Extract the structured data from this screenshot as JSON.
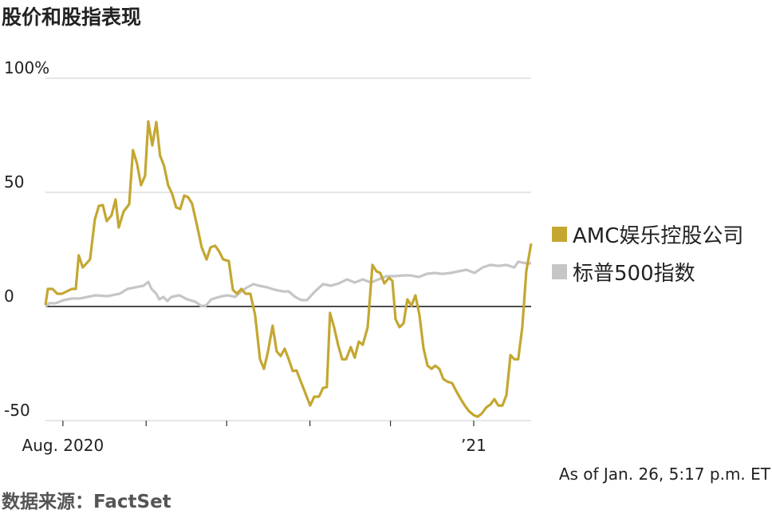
{
  "chart_data": {
    "type": "line",
    "title": "股价和股指表现",
    "note": "As of Jan. 26, 5:17 p.m. ET",
    "source": "数据来源：FactSet",
    "xlim": [
      -6.5,
      174.4
    ],
    "xticks": [
      {
        "value": 0,
        "label": "Aug. 2020"
      },
      {
        "value": 153,
        "label": "’21"
      }
    ],
    "xminor": [
      31,
      61,
      92,
      122
    ],
    "ylim": [
      -50,
      100
    ],
    "yticks": [
      {
        "value": 100,
        "label": "100%"
      },
      50,
      0,
      -50
    ],
    "grid": true,
    "series": [
      {
        "name": "AMC娱乐控股公司",
        "color": "#c4a731",
        "x": [
          -6.5,
          -5.6,
          -3.9,
          -2.1,
          -0.3,
          0.9,
          3.3,
          4.8,
          5.9,
          7.4,
          10.1,
          11.9,
          13.4,
          14.9,
          16.3,
          18.1,
          19.6,
          20.8,
          22.6,
          24.7,
          26.1,
          27.6,
          29.1,
          30.6,
          31.8,
          33.3,
          34.8,
          36.2,
          37.7,
          39.2,
          40.7,
          42.2,
          43.7,
          45.2,
          46.6,
          48.1,
          49.9,
          51.7,
          53.5,
          55.0,
          56.7,
          58.2,
          59.7,
          61.8,
          63.3,
          64.8,
          66.5,
          68.0,
          69.8,
          71.6,
          73.4,
          74.9,
          76.4,
          78.1,
          79.6,
          81.1,
          82.6,
          84.1,
          85.6,
          87.0,
          88.5,
          90.0,
          92.1,
          93.6,
          95.4,
          96.9,
          98.3,
          99.5,
          101.0,
          102.5,
          104.0,
          105.5,
          107.2,
          108.7,
          110.2,
          111.7,
          113.5,
          115.3,
          116.8,
          118.2,
          119.7,
          121.5,
          122.7,
          123.9,
          125.4,
          126.9,
          128.3,
          129.8,
          131.3,
          132.8,
          134.3,
          135.8,
          137.3,
          138.7,
          140.2,
          141.7,
          143.2,
          145.0,
          146.5,
          148.2,
          149.7,
          151.2,
          153.0,
          154.5,
          156.0,
          157.8,
          159.2,
          160.7,
          162.2,
          163.7,
          165.2,
          166.7,
          168.1,
          169.6,
          171.1,
          172.6,
          174.4
        ],
        "values": [
          0.7,
          7.7,
          7.7,
          5.6,
          5.6,
          6.3,
          7.7,
          7.7,
          22.4,
          17.1,
          20.6,
          38.1,
          44.1,
          44.4,
          37.4,
          39.9,
          46.9,
          34.6,
          41.6,
          44.8,
          68.5,
          62.6,
          53.1,
          57.3,
          81.1,
          70.6,
          80.8,
          66.1,
          61.5,
          53.1,
          49.3,
          43.4,
          42.7,
          48.6,
          47.9,
          45.1,
          35.7,
          25.9,
          20.6,
          25.9,
          26.6,
          24.1,
          20.6,
          19.9,
          7.3,
          5.6,
          7.7,
          5.6,
          5.6,
          -3.8,
          -23.1,
          -27.3,
          -19.6,
          -8.4,
          -19.6,
          -21.7,
          -18.5,
          -23.1,
          -28.3,
          -28.0,
          -32.5,
          -37.1,
          -43.4,
          -39.5,
          -39.5,
          -35.7,
          -35.3,
          -2.8,
          -9.1,
          -16.8,
          -23.1,
          -23.1,
          -17.8,
          -22.4,
          -15.4,
          -16.8,
          -9.1,
          18.2,
          15.4,
          14.7,
          10.1,
          12.6,
          11.2,
          -5.6,
          -9.1,
          -7.3,
          3.1,
          0.3,
          4.9,
          -3.8,
          -18.2,
          -25.9,
          -27.3,
          -25.9,
          -27.3,
          -31.8,
          -32.9,
          -33.6,
          -37.1,
          -40.6,
          -43.4,
          -45.8,
          -47.6,
          -48.3,
          -46.9,
          -44.1,
          -43.0,
          -40.6,
          -43.4,
          -43.4,
          -38.8,
          -21.3,
          -23.1,
          -23.1,
          -9.1,
          15.4,
          27.6
        ]
      },
      {
        "name": "标普500指数",
        "color": "#c6c6c6",
        "x": [
          -6.5,
          -5.1,
          -2.7,
          0.3,
          3.3,
          6.2,
          9.2,
          12.2,
          16.6,
          21.1,
          24.1,
          27.0,
          30.0,
          31.8,
          33.0,
          34.8,
          35.9,
          37.4,
          38.9,
          40.4,
          43.4,
          46.3,
          49.3,
          51.4,
          53.2,
          55.3,
          58.2,
          61.2,
          64.2,
          66.5,
          68.6,
          71.0,
          73.1,
          76.1,
          79.0,
          82.0,
          84.1,
          86.5,
          88.8,
          90.9,
          93.9,
          96.9,
          99.8,
          102.8,
          105.8,
          108.7,
          111.7,
          114.7,
          117.6,
          120.6,
          123.6,
          126.6,
          129.5,
          132.5,
          135.5,
          138.4,
          141.4,
          144.4,
          147.3,
          150.3,
          153.3,
          156.3,
          159.2,
          162.2,
          165.2,
          168.1,
          169.6,
          172.6,
          174.4
        ],
        "values": [
          0,
          1.4,
          1.4,
          2.8,
          3.5,
          3.5,
          4.2,
          4.9,
          4.5,
          5.6,
          7.7,
          8.4,
          9.1,
          10.8,
          7.7,
          5.6,
          3.1,
          4.2,
          2.4,
          4.2,
          4.9,
          3.1,
          2.1,
          0.3,
          0.3,
          3.1,
          4.2,
          4.9,
          4.2,
          6.6,
          8.4,
          9.8,
          9.1,
          8.4,
          7.3,
          6.6,
          6.6,
          4.2,
          2.8,
          2.8,
          6.6,
          9.8,
          9.1,
          10.1,
          11.9,
          10.5,
          11.9,
          10.5,
          11.9,
          13.3,
          13.3,
          13.6,
          13.6,
          12.9,
          14.3,
          14.7,
          14.3,
          14.7,
          15.4,
          16.1,
          14.7,
          17.1,
          18.2,
          17.8,
          18.2,
          17.1,
          19.6,
          18.9,
          18.9
        ]
      }
    ]
  }
}
